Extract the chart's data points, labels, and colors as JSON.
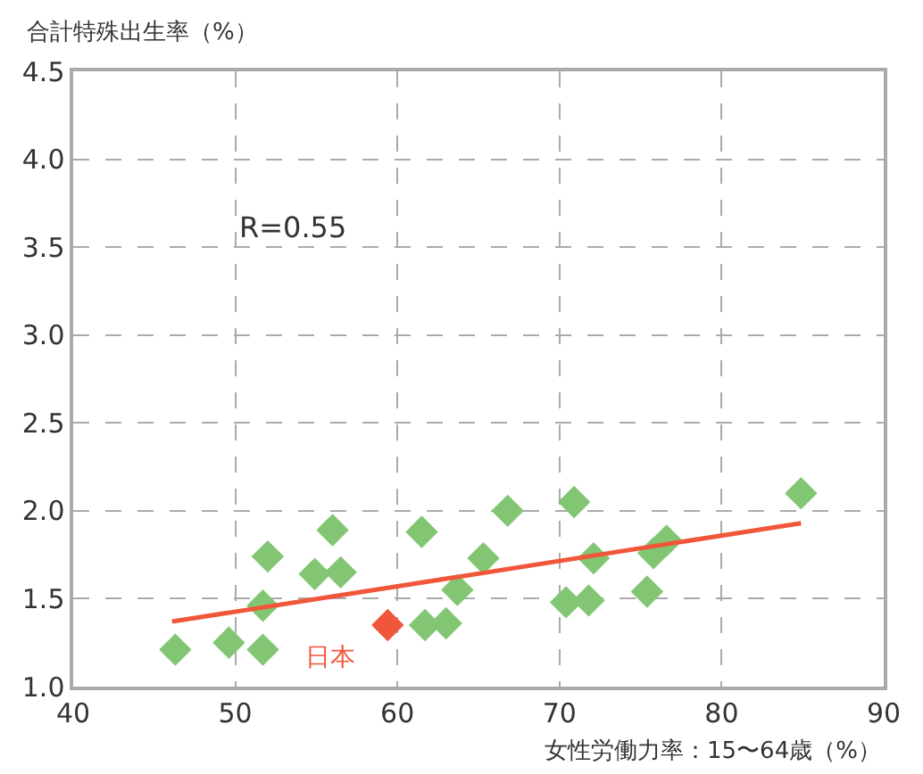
{
  "chart_data": {
    "type": "scatter",
    "xlabel": "女性労働力率：15〜64歳（%）",
    "ylabel": "合計特殊出生率（%）",
    "xlim": [
      40,
      90
    ],
    "xticks": [
      40,
      50,
      60,
      70,
      80,
      90
    ],
    "ylim": [
      1.0,
      4.5
    ],
    "yticks": [
      {
        "value": 1.0,
        "label": "1.0"
      },
      1.5,
      {
        "value": 2.0,
        "label": "2.0"
      },
      2.5,
      {
        "value": 3.0,
        "label": "3.0"
      },
      3.5,
      {
        "value": 4.0,
        "label": "4.0"
      },
      4.5
    ],
    "grid": true,
    "series": [
      {
        "marker": "diamond",
        "color": "#82c673",
        "x": [
          46.3,
          49.6,
          51.7,
          51.7,
          52.0,
          54.9,
          56.5,
          56.0,
          61.5,
          61.7,
          63.0,
          63.7,
          65.3,
          66.8,
          70.9,
          70.4,
          71.8,
          72.1,
          75.4,
          75.8,
          76.6,
          84.9
        ],
        "values": [
          1.21,
          1.25,
          1.46,
          1.21,
          1.74,
          1.64,
          1.65,
          1.89,
          1.88,
          1.35,
          1.36,
          1.55,
          1.73,
          2.0,
          2.05,
          1.48,
          1.49,
          1.73,
          1.54,
          1.76,
          1.83,
          2.1
        ]
      },
      {
        "marker": "diamond",
        "color": "#f0573a",
        "x": [
          59.4
        ],
        "values": [
          1.35
        ]
      },
      {
        "type": "line",
        "color": "#f0573a",
        "x": [
          46.1,
          84.9
        ],
        "values": [
          1.37,
          1.93
        ]
      }
    ],
    "annotations": [
      "R=0.55",
      {
        "text": "日本",
        "x": 59.4,
        "y": 1.35
      }
    ]
  }
}
